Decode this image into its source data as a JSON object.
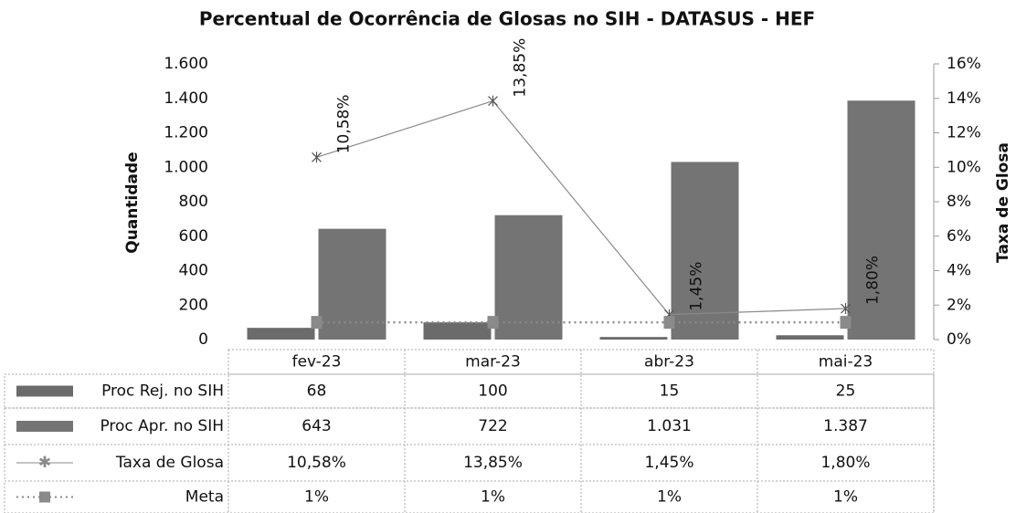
{
  "chart_data": {
    "type": "bar",
    "title": "Percentual de Ocorrência de Glosas no SIH - DATASUS - HEF",
    "y_label": "Quantidade",
    "y2_label": "Taxa de Glosa",
    "categories": [
      "fev-23",
      "mar-23",
      "abr-23",
      "mai-23"
    ],
    "series": [
      {
        "name": "Proc Rej. no SIH",
        "type": "bar",
        "color": "#6b6b6b",
        "values": [
          68,
          100,
          15,
          25
        ]
      },
      {
        "name": "Proc Apr. no SIH",
        "type": "bar",
        "color": "#747474",
        "values": [
          643,
          722,
          1031,
          1387
        ],
        "value_labels": [
          "643",
          "722",
          "1.031",
          "1.387"
        ]
      },
      {
        "name": "Taxa de Glosa",
        "type": "line",
        "axis": "y2",
        "color": "#8a8a8a",
        "marker": "star",
        "values": [
          10.58,
          13.85,
          1.45,
          1.8
        ],
        "value_labels": [
          "10,58%",
          "13,85%",
          "1,45%",
          "1,80%"
        ]
      },
      {
        "name": "Meta",
        "type": "line",
        "axis": "y2",
        "color": "#8a8a8a",
        "marker": "square",
        "dashed": true,
        "values": [
          1,
          1,
          1,
          1
        ],
        "value_labels": [
          "1%",
          "1%",
          "1%",
          "1%"
        ]
      }
    ],
    "ylim": [
      0,
      1600
    ],
    "yticks": [
      0,
      200,
      400,
      600,
      800,
      {
        "value": 1000,
        "label": "1.000"
      },
      {
        "value": 1200,
        "label": "1.200"
      },
      {
        "value": 1400,
        "label": "1.400"
      },
      {
        "value": 1600,
        "label": "1.600"
      }
    ],
    "y2lim": [
      0,
      16
    ],
    "y2ticks": [
      {
        "value": 0,
        "label": "0%"
      },
      {
        "value": 2,
        "label": "2%"
      },
      {
        "value": 4,
        "label": "4%"
      },
      {
        "value": 6,
        "label": "6%"
      },
      {
        "value": 8,
        "label": "8%"
      },
      {
        "value": 10,
        "label": "10%"
      },
      {
        "value": 12,
        "label": "12%"
      },
      {
        "value": 14,
        "label": "14%"
      },
      {
        "value": 16,
        "label": "16%"
      }
    ]
  }
}
